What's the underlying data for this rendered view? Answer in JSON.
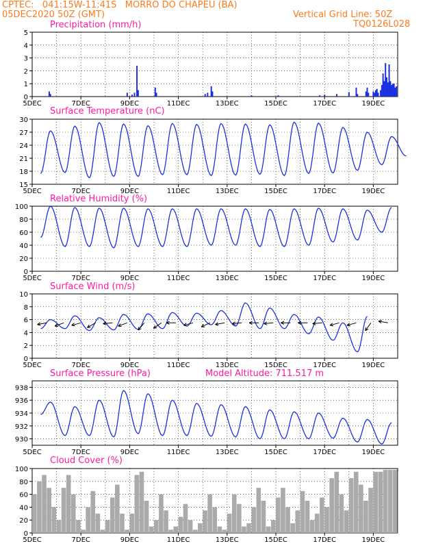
{
  "header": {
    "line1_left": "CPTEC:   041:15W-11:41S   MORRO DO CHAPEU (BA)",
    "line2_left": "05DEC2020 50Z (GMT)",
    "line2_right": "Vertical Grid Line: 50Z",
    "line3_right": "TQ0126L028"
  },
  "extra": {
    "model_altitude": "Model Altitude: 711.517 m"
  },
  "colors": {
    "header": "#ff7a1a",
    "title": "#ff1aa0",
    "series": "#1a2fe0",
    "cloud": "#aaaaaa"
  },
  "chart_data": [
    {
      "type": "bar",
      "title": "Precipitation (mm/h)",
      "xlabels": [
        "5DEC",
        "7DEC",
        "9DEC",
        "11DEC",
        "13DEC",
        "15DEC",
        "17DEC",
        "19DEC"
      ],
      "x_range_days": [
        5,
        20
      ],
      "ylim": [
        0,
        5
      ],
      "yticks": [
        0,
        1,
        2,
        3,
        4,
        5
      ],
      "values": [
        [
          5.7,
          0.4
        ],
        [
          5.75,
          0.2
        ],
        [
          8.9,
          0.3
        ],
        [
          9.1,
          0.15
        ],
        [
          9.2,
          0.3
        ],
        [
          9.3,
          2.4
        ],
        [
          9.35,
          0.5
        ],
        [
          10.05,
          0.7
        ],
        [
          10.1,
          0.3
        ],
        [
          12.1,
          0.2
        ],
        [
          12.2,
          0.3
        ],
        [
          12.35,
          0.8
        ],
        [
          12.4,
          0.4
        ],
        [
          14.0,
          0.1
        ],
        [
          15.1,
          0.1
        ],
        [
          16.8,
          0.1
        ],
        [
          17.0,
          0.15
        ],
        [
          17.5,
          0.2
        ],
        [
          18.0,
          0.35
        ],
        [
          18.3,
          0.7
        ],
        [
          18.35,
          0.2
        ],
        [
          18.7,
          0.4
        ],
        [
          18.75,
          0.7
        ],
        [
          18.8,
          0.3
        ],
        [
          19.0,
          0.4
        ],
        [
          19.05,
          0.3
        ],
        [
          19.1,
          0.5
        ],
        [
          19.15,
          0.6
        ],
        [
          19.2,
          0.3
        ],
        [
          19.3,
          0.5
        ],
        [
          19.35,
          0.9
        ],
        [
          19.4,
          1.8
        ],
        [
          19.45,
          1.2
        ],
        [
          19.5,
          2.6
        ],
        [
          19.55,
          1.5
        ],
        [
          19.6,
          1.1
        ],
        [
          19.65,
          2.5
        ],
        [
          19.7,
          1.2
        ],
        [
          19.75,
          0.9
        ],
        [
          19.8,
          1.0
        ],
        [
          19.85,
          1.0
        ],
        [
          19.9,
          0.7
        ],
        [
          19.95,
          0.8
        ]
      ]
    },
    {
      "type": "line",
      "title": "Surface Temperature (nC)",
      "xlabels": [
        "5DEC",
        "7DEC",
        "9DEC",
        "11DEC",
        "13DEC",
        "15DEC",
        "17DEC",
        "19DEC"
      ],
      "x_range_days": [
        5,
        20
      ],
      "ylim": [
        15,
        30
      ],
      "yticks": [
        15,
        18,
        21,
        24,
        27,
        30
      ],
      "maxima": [
        27.3,
        28.4,
        29.2,
        28.9,
        28.5,
        29.0,
        28.8,
        29.0,
        28.9,
        28.7,
        29.3,
        29.1,
        28.1,
        27.0,
        26.0
      ],
      "minima": [
        17.5,
        17.7,
        16.5,
        16.8,
        16.8,
        17.2,
        17.2,
        17.0,
        17.1,
        17.3,
        17.0,
        17.5,
        17.6,
        18.2,
        19.5,
        21.5
      ]
    },
    {
      "type": "line",
      "title": "Relative Humidity (%)",
      "xlabels": [
        "5DEC",
        "7DEC",
        "9DEC",
        "11DEC",
        "13DEC",
        "15DEC",
        "17DEC",
        "19DEC"
      ],
      "x_range_days": [
        5,
        20
      ],
      "ylim": [
        0,
        100
      ],
      "yticks": [
        0,
        20,
        40,
        60,
        80,
        100
      ],
      "maxima": [
        100,
        98,
        97,
        97,
        96,
        96,
        96,
        96,
        96,
        95,
        96,
        97,
        96,
        94,
        98,
        100
      ],
      "minima": [
        52,
        38,
        38,
        36,
        38,
        38,
        38,
        40,
        40,
        38,
        38,
        40,
        45,
        48,
        60
      ]
    },
    {
      "type": "line",
      "title": "Surface Wind (m/s)",
      "xlabels": [
        "5DEC",
        "7DEC",
        "9DEC",
        "11DEC",
        "13DEC",
        "15DEC",
        "17DEC",
        "19DEC"
      ],
      "x_range_days": [
        5,
        20
      ],
      "ylim": [
        0,
        10
      ],
      "yticks": [
        0,
        2,
        4,
        6,
        8,
        10
      ],
      "maxima": [
        6.0,
        6.6,
        6.3,
        6.8,
        6.9,
        7.1,
        7.0,
        7.4,
        8.6,
        7.8,
        6.8,
        6.4,
        5.5,
        6.5
      ],
      "minima": [
        4.6,
        4.6,
        4.3,
        4.4,
        4.5,
        4.6,
        5.0,
        5.2,
        5.0,
        4.6,
        4.6,
        3.8,
        2.8,
        1.0
      ],
      "arrow_days": [
        5.6,
        6.3,
        7.0,
        7.6,
        8.3,
        8.9,
        9.6,
        10.3,
        10.9,
        11.6,
        12.3,
        12.9,
        13.6,
        14.3,
        14.9,
        15.6,
        16.3,
        16.9,
        17.6,
        18.3,
        18.9,
        19.6
      ],
      "arrow_dirs_deg": [
        190,
        200,
        195,
        210,
        185,
        200,
        230,
        215,
        180,
        195,
        205,
        190,
        185,
        180,
        185,
        180,
        180,
        185,
        195,
        195,
        235,
        170
      ]
    },
    {
      "type": "line",
      "title": "Surface Pressure (hPa)",
      "xlabels": [
        "5DEC",
        "7DEC",
        "9DEC",
        "11DEC",
        "13DEC",
        "15DEC",
        "17DEC",
        "19DEC"
      ],
      "x_range_days": [
        5,
        20
      ],
      "ylim": [
        929,
        939
      ],
      "yticks": [
        930,
        932,
        934,
        936,
        938
      ],
      "maxima": [
        935.7,
        935.0,
        936.0,
        937.5,
        937.0,
        936.0,
        935.5,
        935.3,
        935.0,
        934.5,
        934.2,
        934.0,
        933.2,
        933.0,
        932.5
      ],
      "minima": [
        933.8,
        930.5,
        930.5,
        930.3,
        930.8,
        930.5,
        930.5,
        930.4,
        930.3,
        930.0,
        930.0,
        930.0,
        930.1,
        929.5,
        929.2
      ]
    },
    {
      "type": "area",
      "title": "Cloud Cover (%)",
      "xlabels": [
        "5DEC",
        "7DEC",
        "9DEC",
        "11DEC",
        "13DEC",
        "15DEC",
        "17DEC",
        "19DEC"
      ],
      "x_range_days": [
        5,
        20
      ],
      "ylim": [
        0,
        100
      ],
      "yticks": [
        0,
        20,
        40,
        60,
        80,
        100
      ],
      "values": [
        [
          5.0,
          60
        ],
        [
          5.2,
          80
        ],
        [
          5.4,
          90
        ],
        [
          5.6,
          70
        ],
        [
          5.8,
          40
        ],
        [
          6.0,
          20
        ],
        [
          6.2,
          70
        ],
        [
          6.4,
          90
        ],
        [
          6.6,
          60
        ],
        [
          6.8,
          20
        ],
        [
          7.0,
          5
        ],
        [
          7.2,
          40
        ],
        [
          7.4,
          65
        ],
        [
          7.6,
          30
        ],
        [
          7.8,
          5
        ],
        [
          8.0,
          20
        ],
        [
          8.2,
          55
        ],
        [
          8.4,
          75
        ],
        [
          8.6,
          30
        ],
        [
          8.8,
          5
        ],
        [
          9.0,
          30
        ],
        [
          9.2,
          90
        ],
        [
          9.4,
          95
        ],
        [
          9.6,
          50
        ],
        [
          9.8,
          10
        ],
        [
          10.0,
          20
        ],
        [
          10.2,
          60
        ],
        [
          10.4,
          35
        ],
        [
          10.6,
          5
        ],
        [
          10.8,
          10
        ],
        [
          11.0,
          25
        ],
        [
          11.2,
          45
        ],
        [
          11.4,
          20
        ],
        [
          11.6,
          5
        ],
        [
          11.8,
          15
        ],
        [
          12.0,
          35
        ],
        [
          12.2,
          60
        ],
        [
          12.4,
          40
        ],
        [
          12.6,
          10
        ],
        [
          12.8,
          5
        ],
        [
          13.0,
          30
        ],
        [
          13.2,
          60
        ],
        [
          13.4,
          45
        ],
        [
          13.6,
          10
        ],
        [
          13.8,
          15
        ],
        [
          14.0,
          40
        ],
        [
          14.2,
          70
        ],
        [
          14.4,
          50
        ],
        [
          14.6,
          10
        ],
        [
          14.8,
          20
        ],
        [
          15.0,
          55
        ],
        [
          15.2,
          70
        ],
        [
          15.4,
          40
        ],
        [
          15.6,
          15
        ],
        [
          15.8,
          35
        ],
        [
          16.0,
          65
        ],
        [
          16.2,
          50
        ],
        [
          16.4,
          20
        ],
        [
          16.6,
          30
        ],
        [
          16.8,
          55
        ],
        [
          17.0,
          40
        ],
        [
          17.2,
          85
        ],
        [
          17.4,
          95
        ],
        [
          17.6,
          60
        ],
        [
          17.8,
          35
        ],
        [
          18.0,
          85
        ],
        [
          18.2,
          95
        ],
        [
          18.4,
          75
        ],
        [
          18.6,
          50
        ],
        [
          18.8,
          70
        ],
        [
          19.0,
          95
        ],
        [
          19.2,
          95
        ],
        [
          19.4,
          98
        ],
        [
          19.6,
          98
        ],
        [
          19.8,
          98
        ],
        [
          20.0,
          95
        ]
      ]
    }
  ]
}
